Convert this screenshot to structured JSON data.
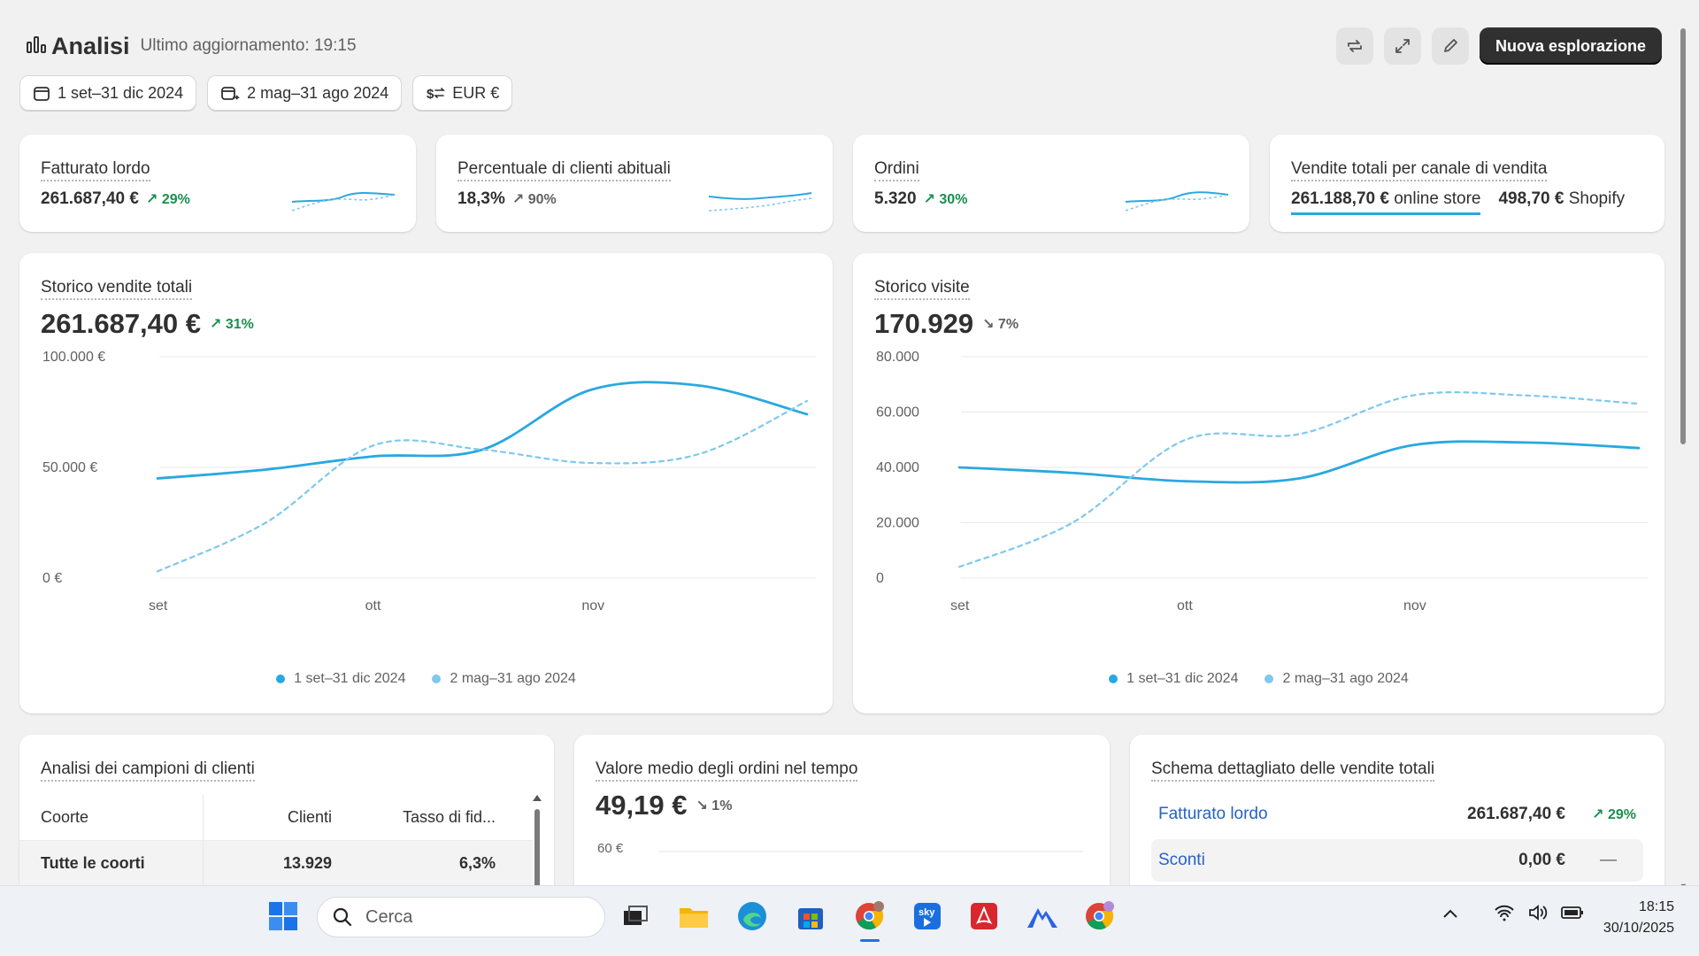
{
  "header": {
    "title": "Analisi",
    "last_updated": "Ultimo aggiornamento: 19:15",
    "primary_action": "Nuova esplorazione"
  },
  "filters": {
    "period": "1 set–31 dic 2024",
    "comparison": "2 mag–31 ago 2024",
    "currency": "EUR €"
  },
  "kpis": [
    {
      "title": "Fatturato lordo",
      "value": "261.687,40 €",
      "delta": "29%",
      "direction": "up"
    },
    {
      "title": "Percentuale di clienti abituali",
      "value": "18,3%",
      "delta": "90%",
      "direction": "up-neutral"
    },
    {
      "title": "Ordini",
      "value": "5.320",
      "delta": "30%",
      "direction": "up"
    },
    {
      "title": "Vendite totali per canale di vendita",
      "channel_1_value": "261.188,70 €",
      "channel_1_name": "online store",
      "channel_2_value": "498,70 €",
      "channel_2_name": "Shopify"
    }
  ],
  "sales_chart": {
    "title": "Storico vendite totali",
    "value": "261.687,40 €",
    "delta": "31%",
    "legend": [
      "1 set–31 dic 2024",
      "2 mag–31 ago 2024"
    ],
    "colors": {
      "current": "#29a8e0",
      "previous": "#7fc8ee"
    }
  },
  "visits_chart": {
    "title": "Storico visite",
    "value": "170.929",
    "delta": "7%",
    "legend": [
      "1 set–31 dic 2024",
      "2 mag–31 ago 2024"
    ]
  },
  "chart_data": [
    {
      "type": "line",
      "title": "Storico vendite totali",
      "xlabel": "",
      "ylabel": "",
      "x_ticks": [
        "set",
        "ott",
        "nov"
      ],
      "y_ticks": [
        "0 €",
        "50.000 €",
        "100.000 €"
      ],
      "ylim": [
        0,
        100000
      ],
      "x": [
        0,
        0.5,
        1,
        1.5,
        2,
        2.5,
        3
      ],
      "series": [
        {
          "name": "1 set–31 dic 2024",
          "style": "solid",
          "values": [
            45000,
            49000,
            55000,
            58000,
            85000,
            87000,
            74000
          ]
        },
        {
          "name": "2 mag–31 ago 2024",
          "style": "dashed",
          "values": [
            3000,
            25000,
            60000,
            58000,
            52000,
            56000,
            80000
          ]
        }
      ]
    },
    {
      "type": "line",
      "title": "Storico visite",
      "xlabel": "",
      "ylabel": "",
      "x_ticks": [
        "set",
        "ott",
        "nov"
      ],
      "y_ticks": [
        "0",
        "20.000",
        "40.000",
        "60.000",
        "80.000"
      ],
      "ylim": [
        0,
        80000
      ],
      "x": [
        0,
        0.5,
        1,
        1.5,
        2,
        2.5,
        3
      ],
      "series": [
        {
          "name": "1 set–31 dic 2024",
          "style": "solid",
          "values": [
            40000,
            38000,
            35000,
            36000,
            48000,
            49000,
            47000
          ]
        },
        {
          "name": "2 mag–31 ago 2024",
          "style": "dashed",
          "values": [
            4000,
            20000,
            50000,
            52000,
            66000,
            66000,
            63000
          ]
        }
      ]
    }
  ],
  "cohort_card": {
    "title": "Analisi dei campioni di clienti",
    "columns": [
      "Coorte",
      "Clienti",
      "Tasso di fid..."
    ],
    "rows": [
      {
        "cohort": "Tutte le coorti",
        "customers": "13.929",
        "rate": "6,3%"
      }
    ]
  },
  "aov_card": {
    "title": "Valore medio degli ordini nel tempo",
    "value": "49,19 €",
    "delta": "1%",
    "y_tick_top": "60 €"
  },
  "breakdown_card": {
    "title": "Schema dettagliato delle vendite totali",
    "rows": [
      {
        "label": "Fatturato lordo",
        "amount": "261.687,40 €",
        "delta": "29%"
      },
      {
        "label": "Sconti",
        "amount": "0,00 €",
        "delta": "—"
      }
    ]
  },
  "taskbar": {
    "search_placeholder": "Cerca",
    "time": "18:15",
    "date": "30/10/2025"
  }
}
